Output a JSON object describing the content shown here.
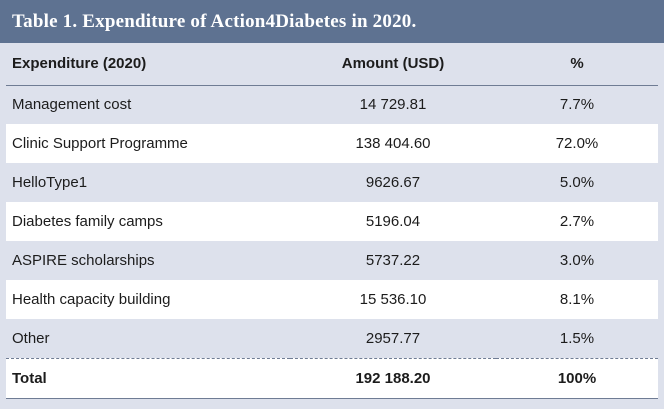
{
  "table": {
    "title": "Table 1. Expenditure of Action4Diabetes in 2020.",
    "headers": [
      "Expenditure (2020)",
      "Amount (USD)",
      "%"
    ],
    "rows": [
      {
        "name": "Management cost",
        "amount": "14 729.81",
        "percent": "7.7%"
      },
      {
        "name": "Clinic Support Programme",
        "amount": "138 404.60",
        "percent": "72.0%"
      },
      {
        "name": "HelloType1",
        "amount": "9626.67",
        "percent": "5.0%"
      },
      {
        "name": "Diabetes family camps",
        "amount": "5196.04",
        "percent": "2.7%"
      },
      {
        "name": "ASPIRE scholarships",
        "amount": "5737.22",
        "percent": "3.0%"
      },
      {
        "name": "Health capacity building",
        "amount": "15 536.10",
        "percent": "8.1%"
      },
      {
        "name": "Other",
        "amount": "2957.77",
        "percent": "1.5%"
      }
    ],
    "total": {
      "name": "Total",
      "amount": "192 188.20",
      "percent": "100%"
    }
  },
  "colors": {
    "title_bar": "#5e7291",
    "band": "#dde1ec",
    "rule": "#6f7c94"
  }
}
